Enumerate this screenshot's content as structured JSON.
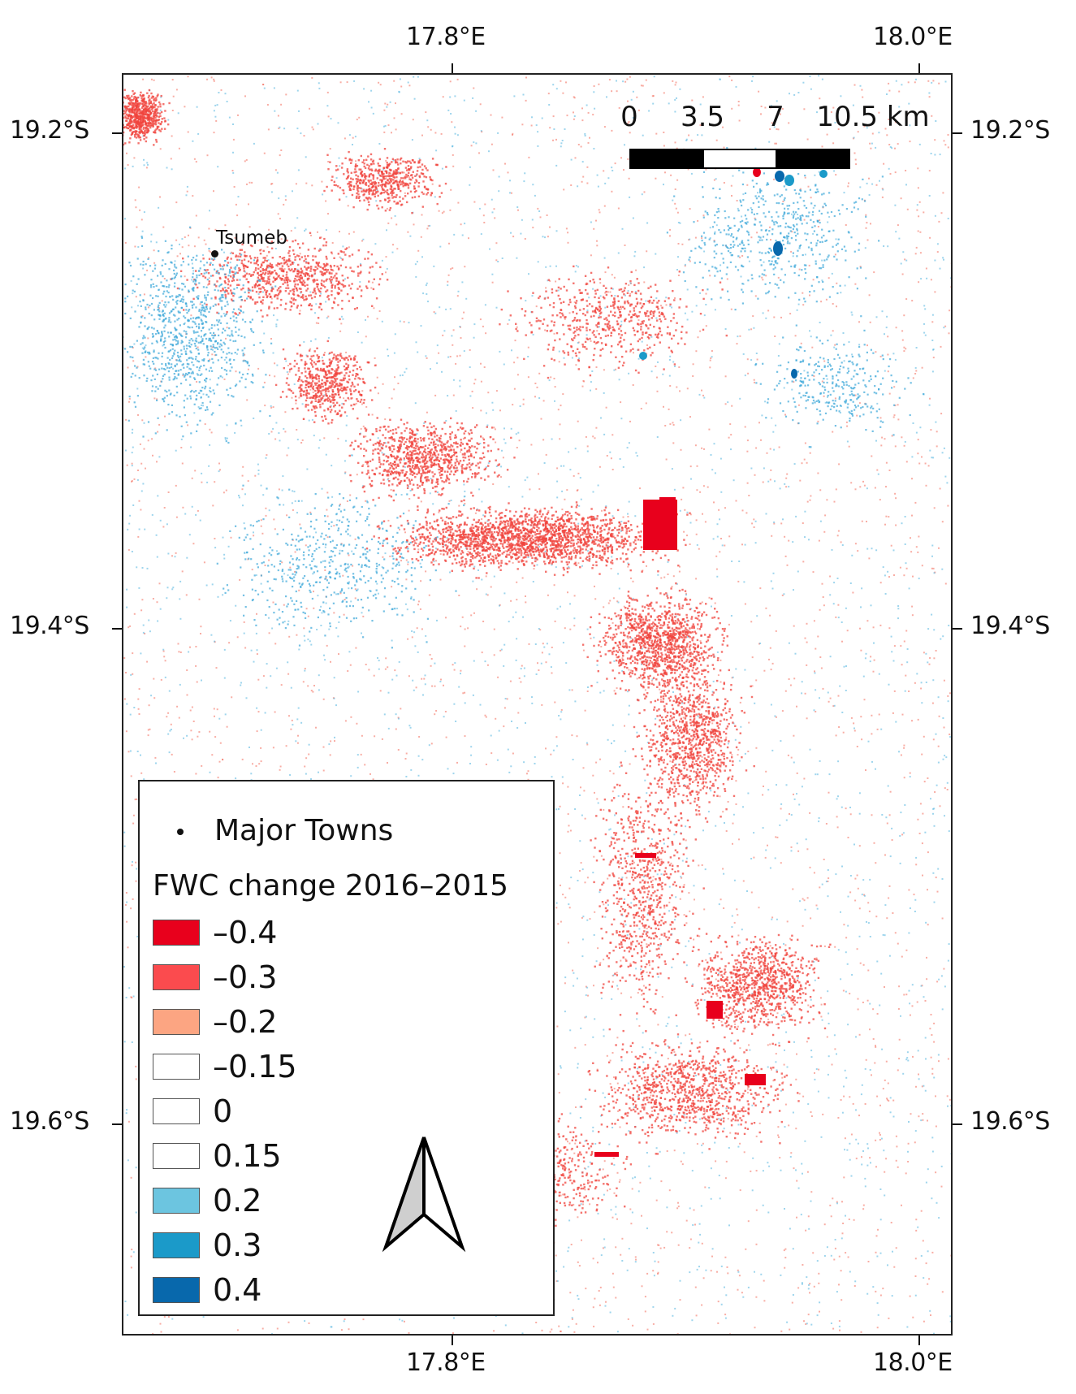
{
  "map": {
    "x_ticks": [
      "17.8°E",
      "18.0°E"
    ],
    "y_ticks": [
      "19.2°S",
      "19.4°S",
      "19.6°S"
    ],
    "town": {
      "name": "Tsumeb"
    },
    "scale_bar": {
      "labels": [
        "0",
        "3.5",
        "7",
        "10.5 km"
      ]
    }
  },
  "legend": {
    "point_label": "Major Towns",
    "title": "FWC change 2016–2015",
    "items": [
      {
        "label": "–0.4",
        "color": "#e8001c"
      },
      {
        "label": "–0.3",
        "color": "#fb4b4e"
      },
      {
        "label": "–0.2",
        "color": "#fca582"
      },
      {
        "label": "–0.15",
        "color": "#ffffff"
      },
      {
        "label": "0",
        "color": "#ffffff"
      },
      {
        "label": "0.15",
        "color": "#ffffff"
      },
      {
        "label": "0.2",
        "color": "#6cc5e0"
      },
      {
        "label": "0.3",
        "color": "#1b9ac9"
      },
      {
        "label": "0.4",
        "color": "#0868ac"
      }
    ]
  }
}
